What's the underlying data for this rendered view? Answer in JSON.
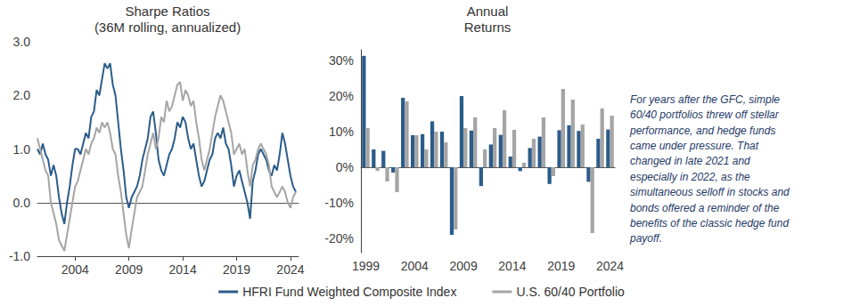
{
  "chart_data": [
    {
      "type": "line",
      "title": "Sharpe Ratios",
      "subtitle": "(36M rolling, annualized)",
      "x": [
        2000.5,
        2000.75,
        2001,
        2001.25,
        2001.5,
        2001.75,
        2002,
        2002.25,
        2002.5,
        2002.75,
        2003,
        2003.25,
        2003.5,
        2003.75,
        2004,
        2004.25,
        2004.5,
        2004.75,
        2005,
        2005.25,
        2005.5,
        2005.75,
        2006,
        2006.25,
        2006.5,
        2006.75,
        2007,
        2007.25,
        2007.5,
        2007.75,
        2008,
        2008.25,
        2008.5,
        2008.75,
        2009,
        2009.25,
        2009.5,
        2009.75,
        2010,
        2010.25,
        2010.5,
        2010.75,
        2011,
        2011.25,
        2011.5,
        2011.75,
        2012,
        2012.25,
        2012.5,
        2012.75,
        2013,
        2013.25,
        2013.5,
        2013.75,
        2014,
        2014.25,
        2014.5,
        2014.75,
        2015,
        2015.25,
        2015.5,
        2015.75,
        2016,
        2016.25,
        2016.5,
        2016.75,
        2017,
        2017.25,
        2017.5,
        2017.75,
        2018,
        2018.25,
        2018.5,
        2018.75,
        2019,
        2019.25,
        2019.5,
        2019.75,
        2020,
        2020.25,
        2020.5,
        2020.75,
        2021,
        2021.25,
        2021.5,
        2021.75,
        2022,
        2022.25,
        2022.5,
        2022.75,
        2023,
        2023.25,
        2023.5,
        2023.75,
        2024,
        2024.25,
        2024.5
      ],
      "xlim": [
        2000.5,
        2024.75
      ],
      "xticks": [
        2004,
        2009,
        2014,
        2019,
        2024
      ],
      "ylim": [
        -1,
        3
      ],
      "yticks": [
        {
          "value": -1,
          "label": "-1.0"
        },
        {
          "value": 0,
          "label": "0.0"
        },
        {
          "value": 1,
          "label": "1.0"
        },
        {
          "value": 2,
          "label": "2.0"
        },
        {
          "value": 3,
          "label": "3.0"
        }
      ],
      "grid": false,
      "legend": "bottom",
      "series": [
        {
          "name": "HFRI Fund Weighted Composite Index",
          "color": "#2b5c8a",
          "values": [
            1.0,
            0.9,
            1.1,
            0.9,
            0.8,
            0.5,
            0.7,
            0.5,
            0.1,
            -0.2,
            -0.4,
            0.0,
            0.3,
            0.7,
            1.0,
            1.0,
            0.9,
            1.1,
            1.3,
            1.2,
            1.6,
            1.7,
            2.1,
            2.0,
            2.3,
            2.6,
            2.5,
            2.6,
            2.2,
            2.0,
            1.5,
            1.0,
            0.6,
            0.1,
            -0.1,
            0.1,
            0.2,
            0.3,
            0.5,
            0.8,
            1.0,
            1.2,
            1.6,
            1.7,
            1.3,
            0.8,
            0.6,
            0.5,
            0.7,
            0.9,
            1.0,
            1.2,
            1.5,
            1.4,
            1.6,
            1.5,
            1.2,
            1.0,
            1.1,
            0.8,
            0.5,
            0.3,
            0.4,
            0.6,
            0.8,
            0.9,
            1.2,
            1.3,
            1.2,
            1.4,
            1.1,
            1.0,
            0.7,
            0.3,
            0.5,
            0.6,
            0.4,
            0.2,
            0.0,
            -0.3,
            0.4,
            0.6,
            0.9,
            1.0,
            0.9,
            0.8,
            0.6,
            0.5,
            0.7,
            0.6,
            0.9,
            1.3,
            1.1,
            0.8,
            0.5,
            0.3,
            0.2
          ]
        },
        {
          "name": "U.S. 60/40 Portfolio",
          "color": "#a5a5a5",
          "values": [
            1.2,
            1.0,
            0.8,
            0.6,
            0.5,
            0.0,
            -0.2,
            -0.4,
            -0.7,
            -0.8,
            -0.9,
            -0.6,
            -0.3,
            0.0,
            0.3,
            0.4,
            0.6,
            0.8,
            1.0,
            0.9,
            1.1,
            1.2,
            1.4,
            1.3,
            1.5,
            1.4,
            1.5,
            1.3,
            1.0,
            0.9,
            0.5,
            0.2,
            -0.2,
            -0.6,
            -0.85,
            -0.5,
            -0.2,
            0.1,
            0.2,
            0.3,
            0.6,
            0.9,
            1.1,
            1.3,
            1.0,
            1.2,
            1.6,
            1.5,
            1.9,
            1.7,
            1.8,
            2.0,
            2.2,
            2.25,
            1.9,
            2.1,
            2.0,
            1.8,
            1.9,
            1.5,
            1.2,
            0.8,
            0.6,
            0.8,
            1.0,
            1.3,
            1.6,
            1.8,
            2.0,
            1.9,
            1.7,
            1.5,
            1.3,
            0.9,
            1.0,
            1.1,
            0.9,
            1.0,
            0.6,
            0.3,
            0.7,
            0.8,
            1.0,
            1.1,
            1.0,
            0.9,
            0.7,
            0.3,
            0.2,
            0.1,
            0.2,
            0.3,
            0.2,
            0.0,
            -0.1,
            0.1,
            0.2
          ]
        }
      ]
    },
    {
      "type": "bar",
      "title": "Annual\nReturns",
      "categories": [
        "1999",
        null,
        null,
        null,
        null,
        "2004",
        null,
        null,
        null,
        null,
        "2009",
        null,
        null,
        null,
        null,
        "2014",
        null,
        null,
        null,
        null,
        "2019",
        null,
        null,
        null,
        null,
        "2024"
      ],
      "ylim": [
        -24,
        33
      ],
      "yticks": [
        {
          "value": -20,
          "label": "-20%"
        },
        {
          "value": -10,
          "label": "-10%"
        },
        {
          "value": 0,
          "label": "0%"
        },
        {
          "value": 10,
          "label": "10%"
        },
        {
          "value": 20,
          "label": "20%"
        },
        {
          "value": 30,
          "label": "30%"
        }
      ],
      "grid": false,
      "annotation": "For years after the GFC, simple\n60/40 portfolios threw off stellar\nperformance, and hedge funds\ncame under pressure. That\nchanged in late 2021 and\nespecially in 2022, as the\nsimultaneous selloff in stocks and\nbonds offered a reminder of the\nbenefits of the classic hedge fund\npayoff.",
      "series": [
        {
          "name": "HFRI Fund Weighted Composite Index",
          "color": "#2b5c8a",
          "values": [
            31.3,
            5.0,
            4.6,
            -1.5,
            19.5,
            9.0,
            9.3,
            12.9,
            10.0,
            -19.0,
            20.0,
            10.3,
            -5.3,
            6.4,
            9.1,
            3.0,
            -1.1,
            5.4,
            8.6,
            -4.7,
            10.4,
            11.8,
            10.2,
            -4.1,
            8.0,
            10.6
          ]
        },
        {
          "name": "U.S. 60/40 Portfolio",
          "color": "#a5a5a5",
          "values": [
            11.0,
            -1.0,
            -4.0,
            -7.0,
            18.5,
            9.0,
            5.0,
            10.0,
            7.0,
            -17.5,
            11.0,
            14.0,
            5.0,
            11.0,
            16.0,
            10.5,
            1.3,
            8.0,
            14.0,
            -2.5,
            22.0,
            19.0,
            12.0,
            -18.5,
            16.5,
            14.5
          ]
        }
      ]
    }
  ]
}
